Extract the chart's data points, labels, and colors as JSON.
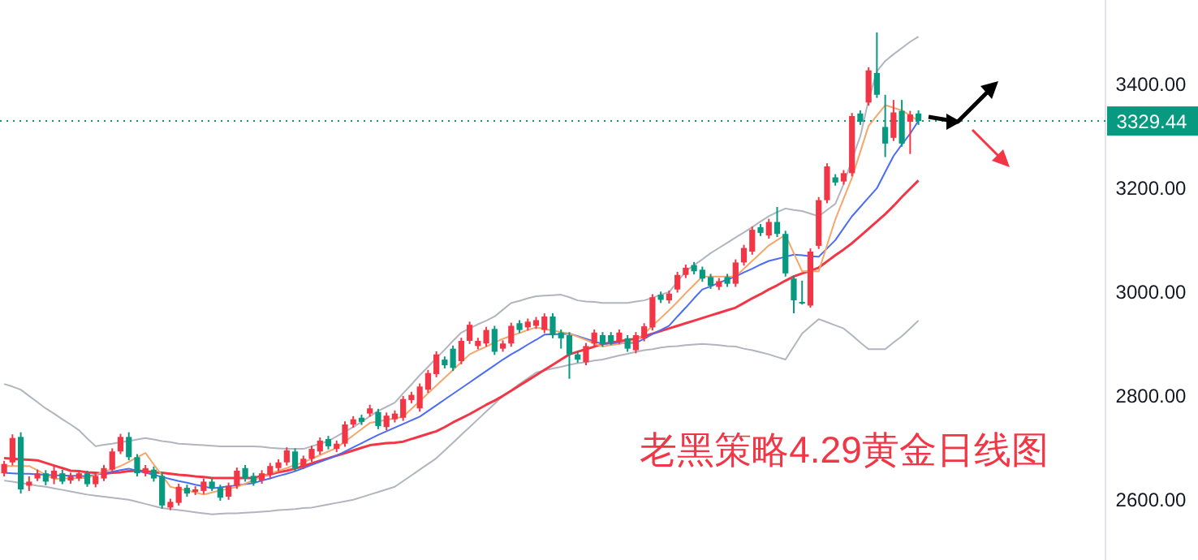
{
  "chart_data": {
    "type": "candlestick",
    "annotations": [
      "老黑策略4.29黄金日线图"
    ],
    "ylim": [
      2484,
      3562.5
    ],
    "yticks": [
      {
        "value": 2600,
        "label": "2600.00"
      },
      {
        "value": 2800,
        "label": "2800.00"
      },
      {
        "value": 3000,
        "label": "3000.00"
      },
      {
        "value": 3200,
        "label": "3200.00"
      },
      {
        "value": 3400,
        "label": "3400.00"
      }
    ],
    "ref_lines": [
      {
        "axis": "y",
        "value": 3329.44,
        "label": "3329.44",
        "color": "#089981",
        "line_style": "dotted"
      }
    ],
    "categories": [
      null,
      null,
      null,
      null,
      null,
      null,
      null,
      null,
      null,
      null,
      null,
      null,
      null,
      null,
      null,
      null,
      null,
      null,
      null,
      null,
      null,
      null,
      null,
      null,
      null,
      null,
      null,
      null,
      null,
      null,
      null,
      null,
      null,
      null,
      null,
      null,
      null,
      null,
      null,
      null,
      null,
      null,
      null,
      null,
      null,
      null,
      null,
      null,
      null,
      null,
      null,
      null,
      null,
      null,
      null,
      null,
      null,
      null,
      null,
      null,
      null,
      null,
      null,
      null,
      null,
      null,
      null,
      null,
      null,
      null,
      null,
      null,
      null,
      null,
      null,
      null,
      null,
      null,
      null,
      null,
      null,
      null,
      null,
      null,
      null,
      null,
      null,
      null,
      null,
      null,
      null,
      null,
      null,
      null,
      null,
      null,
      null,
      null,
      null,
      null,
      null,
      null,
      null,
      null,
      null,
      null,
      null,
      null,
      null,
      null,
      null,
      null,
      null,
      null,
      null,
      null,
      null,
      null,
      null,
      null,
      null,
      null,
      null,
      null,
      null,
      null,
      null,
      null,
      null,
      null,
      null,
      null,
      null
    ],
    "ohlc": [
      [
        2651,
        2675,
        2645,
        2669
      ],
      [
        2672,
        2726,
        2666,
        2719
      ],
      [
        2721,
        2730,
        2612,
        2620
      ],
      [
        2627,
        2645,
        2617,
        2635
      ],
      [
        2641,
        2658,
        2636,
        2651
      ],
      [
        2651,
        2657,
        2628,
        2635
      ],
      [
        2641,
        2667,
        2630,
        2656
      ],
      [
        2651,
        2658,
        2630,
        2635
      ],
      [
        2637,
        2652,
        2631,
        2646
      ],
      [
        2641,
        2657,
        2636,
        2651
      ],
      [
        2651,
        2656,
        2625,
        2630
      ],
      [
        2630,
        2652,
        2624,
        2646
      ],
      [
        2641,
        2667,
        2636,
        2661
      ],
      [
        2658,
        2699,
        2652,
        2693
      ],
      [
        2693,
        2727,
        2688,
        2721
      ],
      [
        2721,
        2730,
        2676,
        2682
      ],
      [
        2682,
        2688,
        2645,
        2651
      ],
      [
        2651,
        2667,
        2645,
        2661
      ],
      [
        2658,
        2664,
        2635,
        2641
      ],
      [
        2646,
        2652,
        2583,
        2589
      ],
      [
        2585,
        2602,
        2580,
        2596
      ],
      [
        2594,
        2631,
        2589,
        2625
      ],
      [
        2623,
        2629,
        2606,
        2612
      ],
      [
        2615,
        2626,
        2609,
        2620
      ],
      [
        2617,
        2641,
        2611,
        2635
      ],
      [
        2635,
        2641,
        2617,
        2623
      ],
      [
        2623,
        2629,
        2598,
        2604
      ],
      [
        2606,
        2633,
        2600,
        2627
      ],
      [
        2627,
        2662,
        2621,
        2656
      ],
      [
        2661,
        2667,
        2635,
        2641
      ],
      [
        2646,
        2652,
        2627,
        2633
      ],
      [
        2637,
        2657,
        2631,
        2651
      ],
      [
        2648,
        2671,
        2642,
        2665
      ],
      [
        2661,
        2678,
        2655,
        2672
      ],
      [
        2672,
        2701,
        2666,
        2695
      ],
      [
        2693,
        2699,
        2655,
        2661
      ],
      [
        2665,
        2685,
        2659,
        2679
      ],
      [
        2679,
        2704,
        2673,
        2698
      ],
      [
        2693,
        2720,
        2687,
        2714
      ],
      [
        2717,
        2723,
        2697,
        2703
      ],
      [
        2698,
        2714,
        2692,
        2708
      ],
      [
        2708,
        2751,
        2702,
        2745
      ],
      [
        2745,
        2761,
        2739,
        2755
      ],
      [
        2758,
        2764,
        2744,
        2750
      ],
      [
        2766,
        2783,
        2760,
        2776
      ],
      [
        2769,
        2775,
        2736,
        2742
      ],
      [
        2740,
        2768,
        2734,
        2762
      ],
      [
        2755,
        2772,
        2749,
        2766
      ],
      [
        2758,
        2800,
        2752,
        2794
      ],
      [
        2792,
        2808,
        2786,
        2802
      ],
      [
        2776,
        2824,
        2770,
        2818
      ],
      [
        2812,
        2850,
        2806,
        2844
      ],
      [
        2842,
        2886,
        2836,
        2880
      ],
      [
        2870,
        2876,
        2853,
        2859
      ],
      [
        2891,
        2897,
        2848,
        2854
      ],
      [
        2867,
        2912,
        2861,
        2906
      ],
      [
        2906,
        2943,
        2900,
        2937
      ],
      [
        2896,
        2912,
        2890,
        2906
      ],
      [
        2901,
        2933,
        2895,
        2927
      ],
      [
        2929,
        2935,
        2879,
        2885
      ],
      [
        2891,
        2907,
        2885,
        2901
      ],
      [
        2901,
        2941,
        2895,
        2935
      ],
      [
        2940,
        2946,
        2921,
        2927
      ],
      [
        2932,
        2949,
        2926,
        2943
      ],
      [
        2935,
        2952,
        2929,
        2946
      ],
      [
        2927,
        2959,
        2921,
        2953
      ],
      [
        2953,
        2959,
        2911,
        2917
      ],
      [
        2922,
        2928,
        2891,
        2911
      ],
      [
        2917,
        2923,
        2833,
        2880
      ],
      [
        2880,
        2886,
        2864,
        2870
      ],
      [
        2865,
        2902,
        2859,
        2896
      ],
      [
        2901,
        2928,
        2895,
        2922
      ],
      [
        2917,
        2923,
        2895,
        2901
      ],
      [
        2917,
        2923,
        2898,
        2904
      ],
      [
        2906,
        2928,
        2900,
        2922
      ],
      [
        2911,
        2917,
        2885,
        2891
      ],
      [
        2888,
        2923,
        2882,
        2917
      ],
      [
        2911,
        2940,
        2905,
        2934
      ],
      [
        2932,
        2996,
        2926,
        2990
      ],
      [
        2995,
        3001,
        2979,
        2985
      ],
      [
        2984,
        3003,
        2978,
        2997
      ],
      [
        3005,
        3039,
        2999,
        3033
      ],
      [
        3033,
        3053,
        3027,
        3047
      ],
      [
        3052,
        3058,
        3034,
        3040
      ],
      [
        3043,
        3049,
        3020,
        3026
      ],
      [
        3029,
        3035,
        3006,
        3012
      ],
      [
        3010,
        3027,
        3004,
        3021
      ],
      [
        3029,
        3035,
        3010,
        3016
      ],
      [
        3016,
        3063,
        3010,
        3057
      ],
      [
        3057,
        3091,
        3051,
        3085
      ],
      [
        3078,
        3126,
        3072,
        3120
      ],
      [
        3125,
        3131,
        3108,
        3114
      ],
      [
        3109,
        3141,
        3103,
        3135
      ],
      [
        3135,
        3164,
        3106,
        3112
      ],
      [
        3112,
        3118,
        3030,
        3036
      ],
      [
        3026,
        3032,
        2959,
        2984
      ],
      [
        2981,
        3022,
        2976,
        2979
      ],
      [
        2974,
        3084,
        2970,
        3078
      ],
      [
        3089,
        3183,
        3083,
        3177
      ],
      [
        3177,
        3248,
        3171,
        3242
      ],
      [
        3221,
        3227,
        3205,
        3211
      ],
      [
        3213,
        3235,
        3207,
        3229
      ],
      [
        3229,
        3345,
        3223,
        3339
      ],
      [
        3344,
        3350,
        3322,
        3328
      ],
      [
        3365,
        3433,
        3359,
        3427
      ],
      [
        3422,
        3500,
        3374,
        3380
      ],
      [
        3318,
        3380,
        3260,
        3286
      ],
      [
        3297,
        3370,
        3291,
        3346
      ],
      [
        3349,
        3370,
        3280,
        3286
      ],
      [
        3328,
        3349,
        3266,
        3342
      ],
      [
        3344,
        3350,
        3322,
        3329.44
      ],
      null,
      null,
      null,
      null,
      null,
      null,
      null,
      null,
      null,
      null,
      null,
      null,
      null,
      null,
      null,
      null,
      null,
      null,
      null,
      null,
      null,
      null
    ],
    "colors": [
      "#f23645",
      "#f23645",
      "#089981",
      "#f23645",
      "#f23645",
      "#089981",
      "#f23645",
      "#089981",
      "#f23645",
      "#f23645",
      "#089981",
      "#f23645",
      "#f23645",
      "#f23645",
      "#f23645",
      "#089981",
      "#089981",
      "#f23645",
      "#089981",
      "#089981",
      "#f23645",
      "#f23645",
      "#089981",
      "#f23645",
      "#f23645",
      "#089981",
      "#089981",
      "#f23645",
      "#f23645",
      "#089981",
      "#089981",
      "#f23645",
      "#f23645",
      "#f23645",
      "#f23645",
      "#089981",
      "#f23645",
      "#f23645",
      "#f23645",
      "#089981",
      "#f23645",
      "#f23645",
      "#f23645",
      "#089981",
      "#f23645",
      "#089981",
      "#f23645",
      "#f23645",
      "#f23645",
      "#f23645",
      "#f23645",
      "#f23645",
      "#f23645",
      "#089981",
      "#089981",
      "#f23645",
      "#f23645",
      "#f23645",
      "#f23645",
      "#089981",
      "#f23645",
      "#f23645",
      "#089981",
      "#f23645",
      "#f23645",
      "#f23645",
      "#089981",
      "#089981",
      "#089981",
      "#089981",
      "#f23645",
      "#f23645",
      "#089981",
      "#089981",
      "#f23645",
      "#089981",
      "#f23645",
      "#f23645",
      "#f23645",
      "#089981",
      "#f23645",
      "#f23645",
      "#f23645",
      "#089981",
      "#089981",
      "#089981",
      "#f23645",
      "#089981",
      "#f23645",
      "#f23645",
      "#f23645",
      "#089981",
      "#f23645",
      "#089981",
      "#089981",
      "#089981",
      "#089981",
      "#f23645",
      "#f23645",
      "#f23645",
      "#089981",
      "#f23645",
      "#f23645",
      "#089981",
      "#f23645",
      "#089981",
      "#089981",
      "#f23645",
      "#089981",
      "#f23645",
      "#089981",
      null,
      null,
      null,
      null,
      null,
      null,
      null,
      null,
      null,
      null,
      null,
      null,
      null,
      null,
      null,
      null,
      null,
      null,
      null,
      null,
      null,
      null
    ],
    "series": [
      {
        "type": "line",
        "color": "#b2b5be",
        "values": [
          2823,
          2818,
          2812,
          2800,
          2788,
          2776,
          2766,
          2755,
          2745,
          2734,
          2718,
          2703,
          2706,
          2708,
          2711,
          2713,
          2716,
          2719,
          2716,
          2713,
          2711,
          2708,
          2707,
          2706,
          2705,
          2704,
          2703,
          2703,
          2703,
          2703,
          2703,
          2702,
          2700,
          2699,
          2698,
          2698,
          2698,
          2703,
          2708,
          2713,
          2722,
          2731,
          2740,
          2750,
          2761,
          2771,
          2779,
          2787,
          2805,
          2822,
          2840,
          2856,
          2873,
          2889,
          2906,
          2922,
          2930,
          2938,
          2945,
          2953,
          2966,
          2979,
          2983,
          2988,
          2992,
          2993,
          2994,
          2995,
          2990,
          2984,
          2982,
          2981,
          2979,
          2979,
          2979,
          2979,
          2982,
          2984,
          2989,
          2995,
          3000,
          3020,
          3040,
          3052,
          3063,
          3075,
          3085,
          3095,
          3105,
          3115,
          3125,
          3136,
          3146,
          3154,
          3161,
          3158,
          3156,
          3151,
          3146,
          3158,
          3170,
          3208,
          3255,
          3300,
          3370,
          3425,
          3445,
          3458,
          3470,
          3482,
          3492,
          null,
          null,
          null,
          null,
          null,
          null,
          null,
          null,
          null,
          null,
          null,
          null,
          null,
          null,
          null,
          null,
          null,
          null,
          null,
          null,
          null,
          null
        ]
      },
      {
        "type": "line",
        "color": "#b2b5be",
        "values": [
          2637,
          2635,
          2632,
          2630,
          2627,
          2625,
          2622,
          2619,
          2616,
          2613,
          2610,
          2608,
          2606,
          2604,
          2602,
          2600,
          2596,
          2592,
          2588,
          2584,
          2582,
          2580,
          2578,
          2576,
          2574,
          2572,
          2573,
          2574,
          2574,
          2575,
          2576,
          2577,
          2578,
          2580,
          2581,
          2582,
          2584,
          2585,
          2588,
          2591,
          2594,
          2597,
          2600,
          2605,
          2610,
          2615,
          2620,
          2625,
          2636,
          2647,
          2658,
          2669,
          2680,
          2695,
          2710,
          2725,
          2740,
          2755,
          2770,
          2785,
          2800,
          2811,
          2823,
          2834,
          2845,
          2849,
          2853,
          2856,
          2860,
          2863,
          2865,
          2868,
          2870,
          2874,
          2878,
          2881,
          2885,
          2888,
          2890,
          2893,
          2895,
          2896,
          2898,
          2899,
          2900,
          2899,
          2898,
          2896,
          2895,
          2891,
          2888,
          2884,
          2880,
          2875,
          2870,
          2895,
          2920,
          2934,
          2948,
          2942,
          2936,
          2930,
          2917,
          2903,
          2890,
          2890,
          2890,
          2903,
          2915,
          2930,
          2945,
          null,
          null,
          null,
          null,
          null,
          null,
          null,
          null,
          null,
          null,
          null,
          null,
          null,
          null,
          null,
          null,
          null,
          null,
          null,
          null,
          null,
          null
        ]
      },
      {
        "type": "line",
        "color": "#f23645",
        "values": [
          2680,
          2679,
          2678,
          2677,
          2676,
          2671,
          2666,
          2661,
          2656,
          2655,
          2653,
          2652,
          2650,
          2652,
          2653,
          2655,
          2656,
          2655,
          2653,
          2652,
          2650,
          2648,
          2647,
          2645,
          2644,
          2642,
          2642,
          2642,
          2642,
          2642,
          2642,
          2646,
          2649,
          2653,
          2656,
          2660,
          2665,
          2670,
          2675,
          2680,
          2685,
          2690,
          2695,
          2700,
          2705,
          2707,
          2709,
          2710,
          2712,
          2717,
          2722,
          2727,
          2732,
          2740,
          2749,
          2757,
          2765,
          2774,
          2783,
          2791,
          2800,
          2810,
          2820,
          2830,
          2840,
          2850,
          2860,
          2870,
          2880,
          2885,
          2890,
          2895,
          2900,
          2903,
          2905,
          2908,
          2910,
          2915,
          2920,
          2925,
          2930,
          2935,
          2940,
          2945,
          2950,
          2955,
          2960,
          2965,
          2970,
          2979,
          2988,
          2996,
          3005,
          3013,
          3022,
          3030,
          3036,
          3041,
          3047,
          3059,
          3071,
          3082,
          3094,
          3108,
          3122,
          3136,
          3150,
          3166,
          3183,
          3199,
          3215,
          null,
          null,
          null,
          null,
          null,
          null,
          null,
          null,
          null,
          null,
          null,
          null,
          null,
          null,
          null,
          null,
          null,
          null,
          null,
          null,
          null,
          null
        ]
      },
      {
        "type": "line",
        "color": "#4a6cf7",
        "values": [
          2652,
          2651,
          2650,
          2650,
          2649,
          2648,
          2647,
          2647,
          2646,
          2646,
          2645,
          2648,
          2651,
          2654,
          2657,
          2660,
          2656,
          2652,
          2648,
          2644,
          2640,
          2636,
          2633,
          2629,
          2626,
          2622,
          2624,
          2626,
          2628,
          2630,
          2632,
          2637,
          2641,
          2646,
          2650,
          2655,
          2661,
          2667,
          2673,
          2679,
          2685,
          2693,
          2701,
          2709,
          2717,
          2725,
          2732,
          2739,
          2746,
          2753,
          2760,
          2771,
          2782,
          2793,
          2804,
          2815,
          2826,
          2837,
          2848,
          2859,
          2870,
          2880,
          2889,
          2899,
          2908,
          2918,
          2919,
          2919,
          2920,
          2915,
          2910,
          2905,
          2900,
          2901,
          2901,
          2902,
          2902,
          2910,
          2919,
          2927,
          2935,
          2953,
          2970,
          2988,
          3005,
          3011,
          3018,
          3024,
          3030,
          3038,
          3045,
          3053,
          3060,
          3064,
          3068,
          3072,
          3071,
          3069,
          3068,
          3084,
          3100,
          3123,
          3146,
          3164,
          3182,
          3200,
          3231,
          3262,
          3284,
          3305,
          3330,
          null,
          null,
          null,
          null,
          null,
          null,
          null,
          null,
          null,
          null,
          null,
          null,
          null,
          null,
          null,
          null,
          null,
          null,
          null,
          null,
          null,
          null
        ]
      },
      {
        "type": "line",
        "color": "#f5a66b",
        "values": [
          2665,
          2665,
          2665,
          2665,
          2657,
          2648,
          2640,
          2641,
          2641,
          2642,
          2642,
          2648,
          2654,
          2659,
          2665,
          2673,
          2682,
          2690,
          2668,
          2647,
          2625,
          2621,
          2618,
          2614,
          2610,
          2614,
          2618,
          2621,
          2625,
          2631,
          2638,
          2644,
          2650,
          2656,
          2661,
          2667,
          2672,
          2679,
          2686,
          2693,
          2700,
          2712,
          2724,
          2736,
          2748,
          2751,
          2754,
          2757,
          2760,
          2775,
          2790,
          2805,
          2820,
          2835,
          2850,
          2865,
          2880,
          2888,
          2895,
          2903,
          2910,
          2916,
          2921,
          2927,
          2932,
          2929,
          2926,
          2923,
          2920,
          2914,
          2908,
          2901,
          2895,
          2898,
          2900,
          2903,
          2905,
          2920,
          2935,
          2950,
          2965,
          2981,
          2998,
          3014,
          3030,
          3030,
          3030,
          3030,
          3030,
          3045,
          3060,
          3075,
          3090,
          3100,
          3110,
          3075,
          3040,
          3040,
          3040,
          3090,
          3140,
          3180,
          3220,
          3270,
          3320,
          3340,
          3360,
          3355,
          3350,
          3340,
          3330,
          null,
          null,
          null,
          null,
          null,
          null,
          null,
          null,
          null,
          null,
          null,
          null,
          null,
          null,
          null,
          null,
          null,
          null,
          null,
          null,
          null,
          null
        ]
      }
    ]
  }
}
